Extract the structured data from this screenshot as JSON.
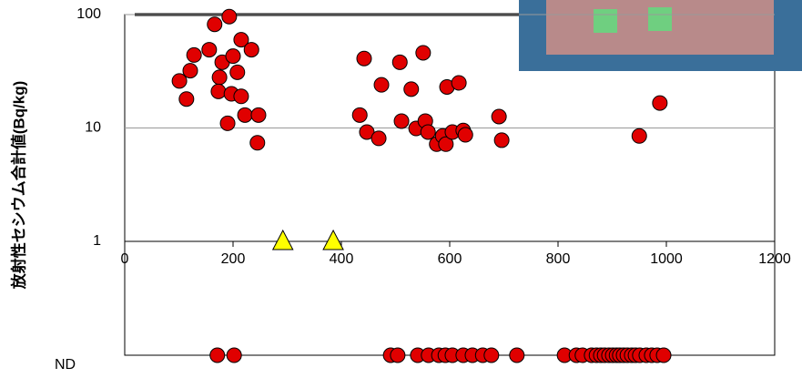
{
  "chart_data": {
    "type": "scatter",
    "y_label": "放射性セシウム合計値(Bq/kg)",
    "log_scale": true,
    "xlim": [
      0,
      1200
    ],
    "xticks": [
      0,
      200,
      400,
      600,
      800,
      1000,
      1200
    ],
    "ylim": [
      1,
      100
    ],
    "yticks": [
      1,
      10,
      100
    ],
    "series": [
      {
        "color": "#e00000",
        "marker": "circle",
        "x": [
          101,
          114,
          121,
          128,
          156,
          166,
          193,
          180,
          200,
          215,
          234,
          208,
          175,
          173,
          197,
          215,
          190,
          222,
          247,
          245,
          442,
          434,
          447,
          469,
          474,
          508,
          511,
          529,
          538,
          551,
          555,
          560,
          576,
          587,
          593,
          595,
          605,
          617,
          625,
          629,
          691,
          696,
          950,
          988
        ],
        "values": [
          26,
          18,
          32,
          44,
          49,
          82,
          96,
          38,
          43,
          60,
          49,
          31,
          28,
          21,
          20,
          19,
          11,
          13,
          13,
          7.4,
          41,
          13,
          9.2,
          8.1,
          24,
          38,
          11.5,
          22,
          9.9,
          46,
          11.5,
          9.2,
          7.2,
          8.5,
          7.2,
          23,
          9.2,
          25,
          9.5,
          8.7,
          12.6,
          7.8,
          8.5,
          16.6
        ]
      },
      {
        "color": "#ffff00",
        "marker": "triangle",
        "x": [
          292,
          385
        ],
        "values": [
          1,
          1
        ]
      }
    ],
    "nd": {
      "label": "ND",
      "color": "#e00000",
      "x": [
        171,
        202,
        491,
        504,
        541,
        561,
        580,
        592,
        605,
        625,
        642,
        661,
        677,
        724,
        812,
        834,
        845,
        862,
        871,
        879,
        886,
        894,
        901,
        908,
        914,
        921,
        928,
        936,
        943,
        951,
        963,
        973,
        983,
        995
      ]
    }
  }
}
